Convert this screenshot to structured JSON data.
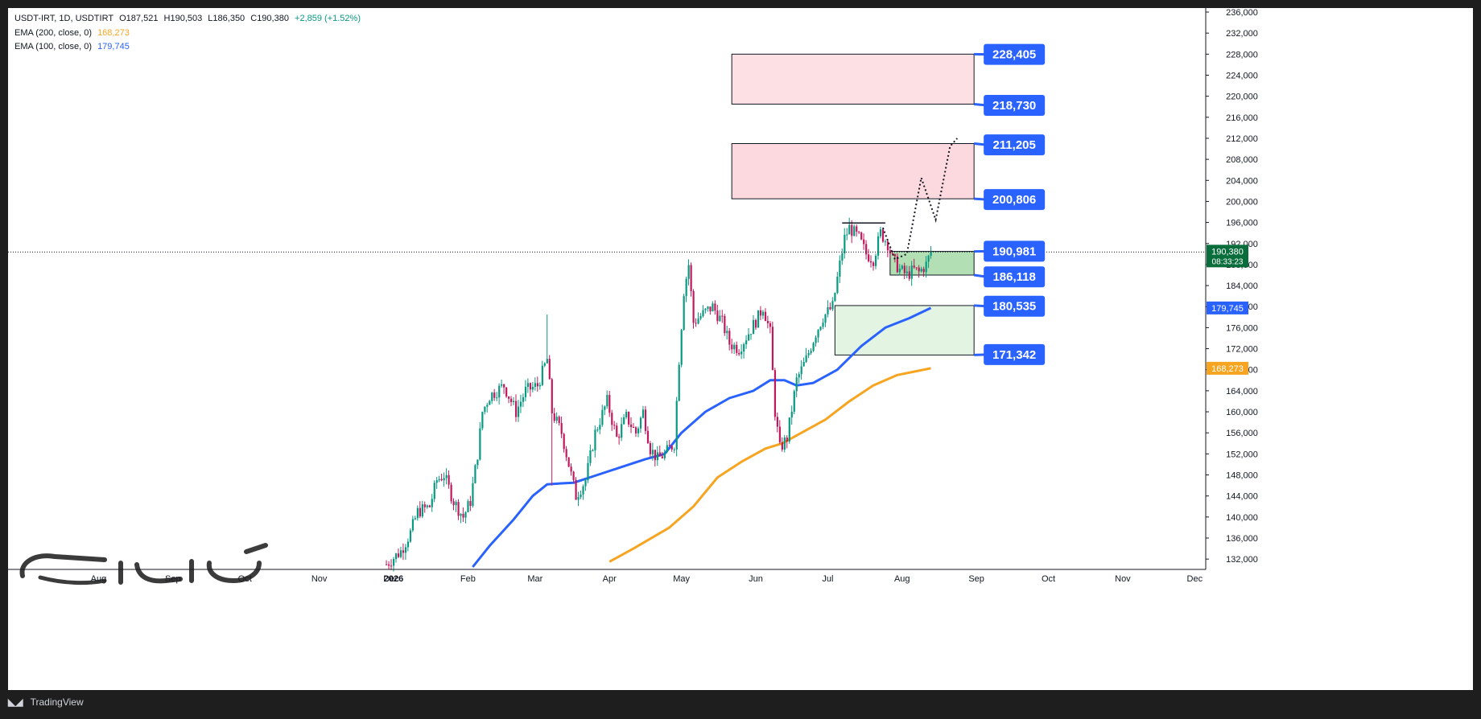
{
  "header": {
    "symbol": "USDT-IRT, 1D, USDTIRT",
    "open": "O187,521",
    "high": "H190,503",
    "low": "L186,350",
    "close": "C190,380",
    "change": "+2,859 (+1.52%)",
    "ema200_label": "EMA (200, close, 0)",
    "ema200_value": "168,273",
    "ema100_label": "EMA (100, close, 0)",
    "ema100_value": "179,745"
  },
  "footer": {
    "brand": "TradingView"
  },
  "chart_data": {
    "type": "candlestick",
    "title": "",
    "xlabel": "",
    "ylabel": "",
    "ylim": [
      130000,
      236000
    ],
    "y_ticks": [
      132000,
      136000,
      140000,
      144000,
      148000,
      152000,
      156000,
      160000,
      164000,
      168000,
      172000,
      176000,
      180000,
      184000,
      188000,
      192000,
      196000,
      200000,
      204000,
      208000,
      212000,
      216000,
      220000,
      224000,
      228000,
      232000,
      236000
    ],
    "x_axis_labels": [
      "Aug",
      "Sep",
      "Oct",
      "Nov",
      "Dec",
      "2026",
      "Feb",
      "Mar",
      "Apr",
      "May",
      "Jun",
      "Jul",
      "Aug",
      "Sep",
      "Oct",
      "Nov",
      "Dec"
    ],
    "x_axis_days": [
      -123,
      -92,
      -62,
      -31,
      -1,
      0,
      31,
      59,
      90,
      120,
      151,
      181,
      212,
      243,
      273,
      304,
      334
    ],
    "last_price": 190380,
    "last_price_label": "190,380",
    "countdown": "08:33:23",
    "colors": {
      "up": "#089981",
      "down": "#c2185b",
      "ema200": "#f7a521",
      "ema100": "#2962ff",
      "label": "#2962ff"
    },
    "price_path": [
      {
        "d": -3,
        "v": 131000
      },
      {
        "d": 3,
        "v": 133500
      },
      {
        "d": 7,
        "v": 137000
      },
      {
        "d": 10,
        "v": 141000
      },
      {
        "d": 15,
        "v": 142000
      },
      {
        "d": 18,
        "v": 147000
      },
      {
        "d": 21,
        "v": 148000
      },
      {
        "d": 25,
        "v": 143000
      },
      {
        "d": 29,
        "v": 140000
      },
      {
        "d": 32,
        "v": 143000
      },
      {
        "d": 35,
        "v": 152000
      },
      {
        "d": 37,
        "v": 160000
      },
      {
        "d": 40,
        "v": 163000
      },
      {
        "d": 46,
        "v": 165000
      },
      {
        "d": 51,
        "v": 160000
      },
      {
        "d": 55,
        "v": 164000
      },
      {
        "d": 60,
        "v": 165000
      },
      {
        "d": 64,
        "v": 170000
      },
      {
        "d": 66,
        "v": 160000
      },
      {
        "d": 70,
        "v": 156000
      },
      {
        "d": 73,
        "v": 150000
      },
      {
        "d": 76,
        "v": 144000
      },
      {
        "d": 80,
        "v": 147000
      },
      {
        "d": 84,
        "v": 156000
      },
      {
        "d": 89,
        "v": 162000
      },
      {
        "d": 93,
        "v": 155000
      },
      {
        "d": 97,
        "v": 159000
      },
      {
        "d": 101,
        "v": 156000
      },
      {
        "d": 104,
        "v": 160000
      },
      {
        "d": 107,
        "v": 153000
      },
      {
        "d": 110,
        "v": 151000
      },
      {
        "d": 113,
        "v": 152000
      },
      {
        "d": 117,
        "v": 154000
      },
      {
        "d": 119,
        "v": 170000
      },
      {
        "d": 121,
        "v": 183000
      },
      {
        "d": 123,
        "v": 188000
      },
      {
        "d": 125,
        "v": 177000
      },
      {
        "d": 130,
        "v": 179000
      },
      {
        "d": 133,
        "v": 180000
      },
      {
        "d": 137,
        "v": 177000
      },
      {
        "d": 140,
        "v": 173000
      },
      {
        "d": 144,
        "v": 172000
      },
      {
        "d": 148,
        "v": 175000
      },
      {
        "d": 152,
        "v": 178000
      },
      {
        "d": 154,
        "v": 180000
      },
      {
        "d": 157,
        "v": 175000
      },
      {
        "d": 159,
        "v": 160000
      },
      {
        "d": 161,
        "v": 153000
      },
      {
        "d": 164,
        "v": 155000
      },
      {
        "d": 168,
        "v": 166000
      },
      {
        "d": 172,
        "v": 170000
      },
      {
        "d": 176,
        "v": 175000
      },
      {
        "d": 179,
        "v": 178000
      },
      {
        "d": 183,
        "v": 180000
      },
      {
        "d": 186,
        "v": 188000
      },
      {
        "d": 188,
        "v": 193000
      },
      {
        "d": 190,
        "v": 195000
      },
      {
        "d": 194,
        "v": 193000
      },
      {
        "d": 197,
        "v": 190000
      },
      {
        "d": 200,
        "v": 189000
      },
      {
        "d": 203,
        "v": 194000
      },
      {
        "d": 206,
        "v": 192000
      },
      {
        "d": 208,
        "v": 189000
      },
      {
        "d": 211,
        "v": 187000
      },
      {
        "d": 214,
        "v": 186000
      },
      {
        "d": 217,
        "v": 187000
      },
      {
        "d": 219,
        "v": 186500
      },
      {
        "d": 222,
        "v": 188000
      },
      {
        "d": 224,
        "v": 190380
      }
    ],
    "series": [
      {
        "name": "EMA (200, close, 0)",
        "points": [
          {
            "d": 90,
            "v": 131500
          },
          {
            "d": 100,
            "v": 134000
          },
          {
            "d": 115,
            "v": 138000
          },
          {
            "d": 125,
            "v": 142000
          },
          {
            "d": 135,
            "v": 147500
          },
          {
            "d": 145,
            "v": 150500
          },
          {
            "d": 155,
            "v": 153000
          },
          {
            "d": 162,
            "v": 154000
          },
          {
            "d": 170,
            "v": 156000
          },
          {
            "d": 180,
            "v": 158500
          },
          {
            "d": 190,
            "v": 162000
          },
          {
            "d": 200,
            "v": 165000
          },
          {
            "d": 210,
            "v": 167000
          },
          {
            "d": 224,
            "v": 168273
          }
        ]
      },
      {
        "name": "EMA (100, close, 0)",
        "points": [
          {
            "d": 33,
            "v": 130500
          },
          {
            "d": 40,
            "v": 134500
          },
          {
            "d": 50,
            "v": 139500
          },
          {
            "d": 58,
            "v": 144000
          },
          {
            "d": 64,
            "v": 146200
          },
          {
            "d": 70,
            "v": 146400
          },
          {
            "d": 75,
            "v": 146500
          },
          {
            "d": 85,
            "v": 148000
          },
          {
            "d": 95,
            "v": 149500
          },
          {
            "d": 105,
            "v": 151000
          },
          {
            "d": 113,
            "v": 152000
          },
          {
            "d": 120,
            "v": 156000
          },
          {
            "d": 130,
            "v": 160000
          },
          {
            "d": 140,
            "v": 162600
          },
          {
            "d": 150,
            "v": 164000
          },
          {
            "d": 157,
            "v": 166000
          },
          {
            "d": 163,
            "v": 166000
          },
          {
            "d": 168,
            "v": 165000
          },
          {
            "d": 175,
            "v": 165500
          },
          {
            "d": 185,
            "v": 168000
          },
          {
            "d": 195,
            "v": 172500
          },
          {
            "d": 205,
            "v": 176000
          },
          {
            "d": 215,
            "v": 177800
          },
          {
            "d": 224,
            "v": 179745
          }
        ]
      }
    ],
    "zones": [
      {
        "kind": "resistance",
        "d_start": 141,
        "d_end": 242,
        "top": 228000,
        "bottom": 218500,
        "fill": "#fde0e3"
      },
      {
        "kind": "resistance",
        "d_start": 141,
        "d_end": 242,
        "top": 211000,
        "bottom": 200500,
        "fill": "#fcd9de"
      },
      {
        "kind": "support",
        "d_start": 207,
        "d_end": 242,
        "top": 190500,
        "bottom": 186000,
        "fill": "#b2dfb3"
      },
      {
        "kind": "support",
        "d_start": 184,
        "d_end": 242,
        "top": 180200,
        "bottom": 170800,
        "fill": "#e3f4e3"
      }
    ],
    "resistance_line": {
      "d_start": 187,
      "d_end": 205,
      "v": 195900
    },
    "projection": [
      {
        "d": 204,
        "v": 195000
      },
      {
        "d": 209,
        "v": 189000
      },
      {
        "d": 214,
        "v": 190000
      },
      {
        "d": 220,
        "v": 204500
      },
      {
        "d": 226,
        "v": 196500
      },
      {
        "d": 232,
        "v": 210500
      },
      {
        "d": 235,
        "v": 212000
      }
    ],
    "annotations": [
      {
        "label": "228,405",
        "v": 228405,
        "anchor_v": 228000
      },
      {
        "label": "218,730",
        "v": 218730,
        "anchor_v": 218500
      },
      {
        "label": "211,205",
        "v": 211205,
        "anchor_v": 211000
      },
      {
        "label": "200,806",
        "v": 200806,
        "anchor_v": 200500
      },
      {
        "label": "190,981",
        "v": 190981,
        "anchor_v": 190500
      },
      {
        "label": "186,118",
        "v": 186118,
        "anchor_v": 186000
      },
      {
        "label": "180,535",
        "v": 180535,
        "anchor_v": 180200
      },
      {
        "label": "171,342",
        "v": 171342,
        "anchor_v": 170800
      }
    ],
    "axis_tags": [
      {
        "label": "179,745",
        "v": 179745,
        "fill": "#2962ff"
      },
      {
        "label": "168,273",
        "v": 168273,
        "fill": "#f7a521"
      }
    ]
  }
}
